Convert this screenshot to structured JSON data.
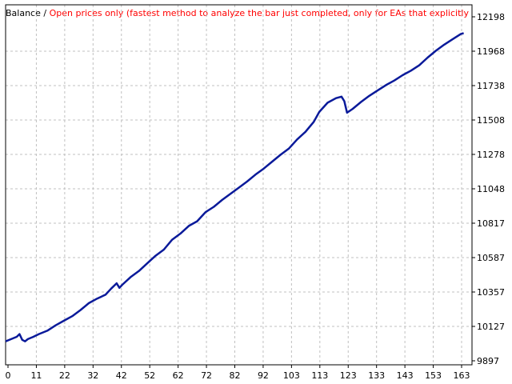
{
  "chart_data": {
    "type": "line",
    "title": "Balance",
    "title_separator": "/",
    "subtitle": "Open prices only (fastest method to analyze the bar just completed, only for EAs that explicitly control bar opening",
    "colors": {
      "series": "#0a1a9a",
      "subtitle": "#ff0000",
      "grid": "#c0c0c0",
      "axis": "#000000"
    },
    "grid": true,
    "x_ticks": [
      "0",
      "11",
      "22",
      "32",
      "42",
      "52",
      "62",
      "72",
      "82",
      "92",
      "103",
      "113",
      "123",
      "133",
      "143",
      "153",
      "163"
    ],
    "y_ticks": [
      "12198",
      "11968",
      "11738",
      "11508",
      "11278",
      "11048",
      "10817",
      "10587",
      "10357",
      "10127",
      "9897"
    ],
    "xlim": [
      0,
      168
    ],
    "ylim": [
      9897,
      12198
    ],
    "series": [
      {
        "x": [
          0,
          2,
          4,
          5,
          6,
          7,
          8,
          10,
          12,
          15,
          18,
          21,
          24,
          27,
          30,
          33,
          36,
          38,
          40,
          41,
          42,
          45,
          48,
          51,
          54,
          57,
          60,
          63,
          66,
          69,
          72,
          75,
          78,
          81,
          84,
          87,
          90,
          93,
          96,
          99,
          102,
          105,
          108,
          111,
          113,
          116,
          119,
          121,
          122,
          123,
          125,
          128,
          131,
          134,
          137,
          140,
          143,
          146,
          149,
          152,
          155,
          158,
          161,
          164,
          165
        ],
        "y": [
          10050,
          10065,
          10080,
          10098,
          10060,
          10050,
          10065,
          10080,
          10098,
          10120,
          10155,
          10185,
          10215,
          10255,
          10300,
          10330,
          10355,
          10395,
          10430,
          10400,
          10420,
          10470,
          10510,
          10560,
          10610,
          10650,
          10715,
          10755,
          10805,
          10835,
          10895,
          10930,
          10975,
          11015,
          11055,
          11095,
          11140,
          11180,
          11225,
          11270,
          11310,
          11370,
          11420,
          11485,
          11550,
          11610,
          11640,
          11650,
          11620,
          11545,
          11570,
          11615,
          11655,
          11690,
          11725,
          11755,
          11790,
          11820,
          11855,
          11905,
          11950,
          11990,
          12025,
          12060,
          12065
        ]
      }
    ]
  }
}
